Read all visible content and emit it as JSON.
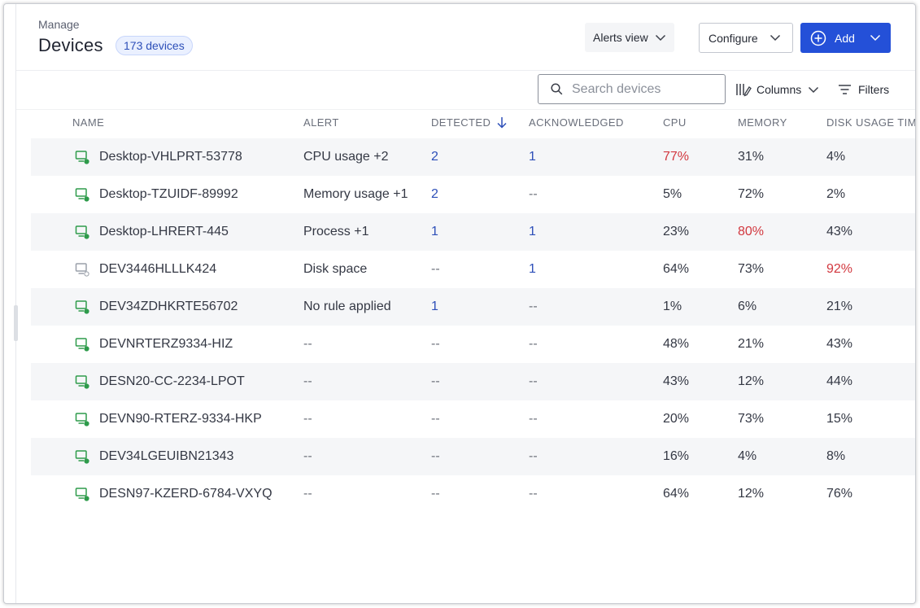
{
  "header": {
    "section_label": "Manage",
    "title": "Devices",
    "count_badge": "173 devices"
  },
  "actions": {
    "alerts_view_label": "Alerts view",
    "configure_label": "Configure",
    "add_label": "Add"
  },
  "toolbar": {
    "search_placeholder": "Search devices",
    "search_value": "",
    "columns_label": "Columns",
    "filters_label": "Filters"
  },
  "table": {
    "columns": [
      "NAME",
      "ALERT",
      "DETECTED",
      "ACKNOWLEDGED",
      "CPU",
      "MEMORY",
      "DISK USAGE TIM"
    ],
    "sorted_column": "DETECTED",
    "sort_direction": "descending",
    "rows": [
      {
        "name": "Desktop-VHLPRT-53778",
        "status": "online",
        "alert": "CPU usage +2",
        "detected": "2",
        "acknowledged": "1",
        "cpu": "77%",
        "memory": "31%",
        "disk": "4%",
        "highlight": "cpu"
      },
      {
        "name": "Desktop-TZUIDF-89992",
        "status": "online",
        "alert": "Memory usage +1",
        "detected": "2",
        "acknowledged": "--",
        "cpu": "5%",
        "memory": "72%",
        "disk": "2%",
        "highlight": ""
      },
      {
        "name": "Desktop-LHRERT-445",
        "status": "online",
        "alert": "Process +1",
        "detected": "1",
        "acknowledged": "1",
        "cpu": "23%",
        "memory": "80%",
        "disk": "43%",
        "highlight": "memory"
      },
      {
        "name": "DEV3446HLLLK424",
        "status": "offline",
        "alert": "Disk space",
        "detected": "--",
        "acknowledged": "1",
        "cpu": "64%",
        "memory": "73%",
        "disk": "92%",
        "highlight": "disk"
      },
      {
        "name": "DEV34ZDHKRTE56702",
        "status": "online",
        "alert": "No rule applied",
        "detected": "1",
        "acknowledged": "--",
        "cpu": "1%",
        "memory": "6%",
        "disk": "21%",
        "highlight": ""
      },
      {
        "name": "DEVNRTERZ9334-HIZ",
        "status": "online",
        "alert": "--",
        "detected": "--",
        "acknowledged": "--",
        "cpu": "48%",
        "memory": "21%",
        "disk": "43%",
        "highlight": ""
      },
      {
        "name": "DESN20-CC-2234-LPOT",
        "status": "online",
        "alert": "--",
        "detected": "--",
        "acknowledged": "--",
        "cpu": "43%",
        "memory": "12%",
        "disk": "44%",
        "highlight": ""
      },
      {
        "name": "DEVN90-RTERZ-9334-HKP",
        "status": "online",
        "alert": "--",
        "detected": "--",
        "acknowledged": "--",
        "cpu": "20%",
        "memory": "73%",
        "disk": "15%",
        "highlight": ""
      },
      {
        "name": "DEV34LGEUIBN21343",
        "status": "online",
        "alert": "--",
        "detected": "--",
        "acknowledged": "--",
        "cpu": "16%",
        "memory": "4%",
        "disk": "8%",
        "highlight": ""
      },
      {
        "name": "DESN97-KZERD-6784-VXYQ",
        "status": "online",
        "alert": "--",
        "detected": "--",
        "acknowledged": "--",
        "cpu": "64%",
        "memory": "12%",
        "disk": "76%",
        "highlight": ""
      }
    ]
  },
  "colors": {
    "primary": "#2450d8",
    "link": "#2d4fb8",
    "alert": "#d2383f",
    "online": "#2e9b4b",
    "offline": "#9aa0aa"
  },
  "icons": {
    "device": "monitor-icon",
    "search": "search-icon",
    "columns": "columns-icon",
    "filters": "filter-icon",
    "sort": "arrow-down-icon",
    "add": "plus-circle-icon",
    "dropdown": "chevron-down-icon"
  }
}
